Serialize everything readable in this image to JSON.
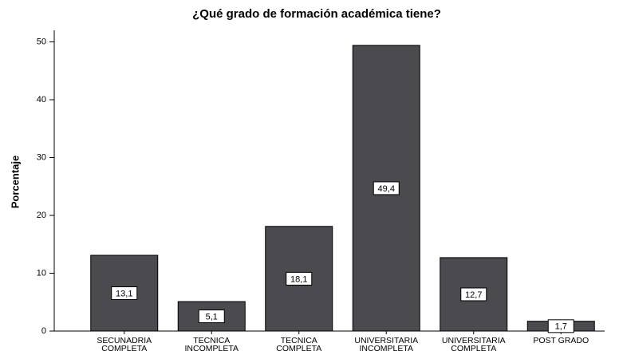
{
  "chart_data": {
    "type": "bar",
    "title": "¿Qué grado de formación académica tiene?",
    "ylabel": "Porcentaje",
    "categories": [
      "SECUNADRIA\nCOMPLETA",
      "TECNICA\nINCOMPLETA",
      "TECNICA\nCOMPLETA",
      "UNIVERSITARIA\nINCOMPLETA",
      "UNIVERSITARIA\nCOMPLETA",
      "POST GRADO"
    ],
    "values": [
      13.1,
      5.1,
      18.1,
      49.4,
      12.7,
      1.7
    ],
    "value_labels": [
      "13,1",
      "5,1",
      "18,1",
      "49,4",
      "12,7",
      "1,7"
    ],
    "color": "#4b4b4f",
    "ylim": [
      0,
      52
    ],
    "yticks": [
      0,
      10,
      20,
      30,
      40,
      50
    ],
    "grid": false
  }
}
